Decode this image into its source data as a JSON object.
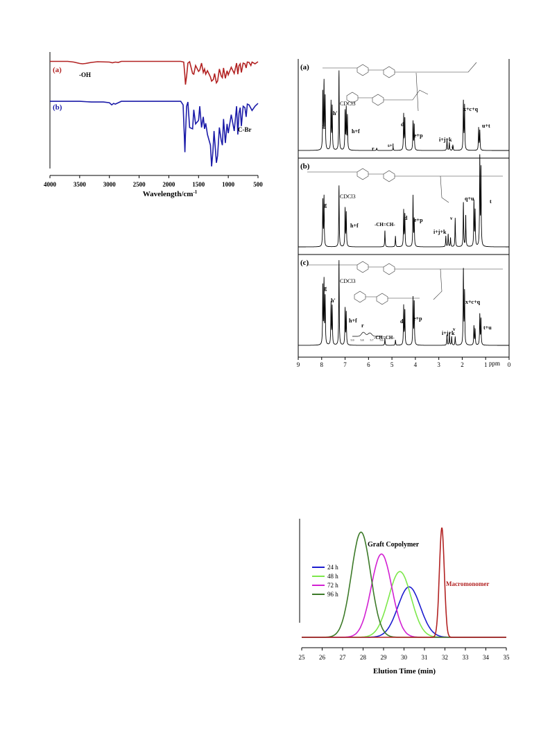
{
  "chart_data": [
    {
      "type": "line",
      "title": "",
      "xlabel": "Wavelength/cm",
      "xlabel_sup": "-1",
      "ylabel": "",
      "xlim": [
        4000,
        500
      ],
      "xticks": [
        "4000",
        "3500",
        "3000",
        "2500",
        "2000",
        "1500",
        "1000",
        "500"
      ],
      "grid": false,
      "series": [
        {
          "name": "(a)",
          "color": "#b22222",
          "x": [
            4000,
            3700,
            3600,
            3500,
            3450,
            3400,
            3300,
            3200,
            3000,
            2950,
            2900,
            2850,
            2800,
            2500,
            2200,
            2000,
            1800,
            1750,
            1730,
            1720,
            1700,
            1680,
            1650,
            1600,
            1580,
            1550,
            1500,
            1480,
            1450,
            1420,
            1400,
            1380,
            1350,
            1300,
            1280,
            1250,
            1230,
            1200,
            1180,
            1150,
            1120,
            1100,
            1080,
            1050,
            1020,
            1000,
            950,
            900,
            860,
            840,
            820,
            800,
            780,
            750,
            720,
            700,
            680,
            650,
            620,
            600,
            550,
            500
          ],
          "y": [
            97,
            97,
            95,
            91,
            90,
            91,
            94,
            96,
            95,
            93,
            95,
            94,
            97,
            97,
            97,
            97,
            97,
            95,
            55,
            30,
            55,
            92,
            96,
            62,
            60,
            85,
            68,
            72,
            92,
            65,
            75,
            60,
            70,
            52,
            40,
            45,
            62,
            35,
            40,
            75,
            55,
            50,
            78,
            48,
            70,
            58,
            80,
            62,
            92,
            60,
            85,
            90,
            65,
            92,
            90,
            78,
            95,
            94,
            85,
            95,
            90,
            96
          ]
        },
        {
          "name": "(b)",
          "color": "#1a1aa8",
          "x": [
            4000,
            3700,
            3500,
            3300,
            3100,
            3000,
            2960,
            2930,
            2900,
            2850,
            2800,
            2500,
            2200,
            2000,
            1800,
            1760,
            1740,
            1730,
            1720,
            1700,
            1680,
            1650,
            1600,
            1580,
            1550,
            1500,
            1480,
            1450,
            1420,
            1400,
            1380,
            1350,
            1300,
            1280,
            1260,
            1240,
            1200,
            1180,
            1150,
            1120,
            1100,
            1080,
            1050,
            1020,
            1000,
            950,
            900,
            860,
            840,
            820,
            800,
            780,
            750,
            720,
            700,
            680,
            650,
            600,
            550,
            500
          ],
          "y": [
            97,
            97,
            97,
            96,
            96,
            95,
            92,
            94,
            93,
            95,
            97,
            97,
            97,
            97,
            97,
            92,
            50,
            25,
            50,
            90,
            96,
            60,
            58,
            85,
            65,
            70,
            90,
            60,
            75,
            58,
            66,
            50,
            35,
            5,
            25,
            55,
            10,
            20,
            60,
            42,
            35,
            72,
            38,
            65,
            52,
            78,
            55,
            90,
            50,
            80,
            88,
            62,
            90,
            88,
            75,
            93,
            92,
            84,
            90,
            94
          ]
        }
      ],
      "annotations": [
        "-OH",
        "C-Br"
      ]
    },
    {
      "type": "line",
      "title": "",
      "xlabel": "ppm",
      "ylabel": "",
      "xlim": [
        9,
        0
      ],
      "xticks": [
        "9",
        "8",
        "7",
        "6",
        "5",
        "4",
        "3",
        "2",
        "1",
        "0"
      ],
      "grid": false,
      "panels": [
        {
          "label": "(a)",
          "annotations": [
            "g",
            "h'",
            "CDCl3",
            "h+f",
            "d",
            "e+p",
            "r",
            "s+l",
            "i+j+k",
            "v",
            "x+c+q",
            "u+t"
          ],
          "peaks": [
            {
              "ppm": 7.95,
              "height": 0.72
            },
            {
              "ppm": 7.9,
              "height": 0.82
            },
            {
              "ppm": 7.85,
              "height": 0.66
            },
            {
              "ppm": 7.6,
              "height": 0.6
            },
            {
              "ppm": 7.55,
              "height": 0.55
            },
            {
              "ppm": 7.26,
              "height": 1.0
            },
            {
              "ppm": 7.0,
              "height": 0.48
            },
            {
              "ppm": 6.95,
              "height": 0.52
            },
            {
              "ppm": 6.9,
              "height": 0.42
            },
            {
              "ppm": 5.65,
              "height": 0.03
            },
            {
              "ppm": 4.95,
              "height": 0.04
            },
            {
              "ppm": 4.5,
              "height": 0.45
            },
            {
              "ppm": 4.45,
              "height": 0.4
            },
            {
              "ppm": 4.1,
              "height": 0.36
            },
            {
              "ppm": 4.05,
              "height": 0.32
            },
            {
              "ppm": 2.65,
              "height": 0.14
            },
            {
              "ppm": 2.55,
              "height": 0.1
            },
            {
              "ppm": 2.4,
              "height": 0.07
            },
            {
              "ppm": 1.95,
              "height": 0.62
            },
            {
              "ppm": 1.9,
              "height": 0.55
            },
            {
              "ppm": 1.3,
              "height": 0.28
            },
            {
              "ppm": 1.25,
              "height": 0.25
            }
          ]
        },
        {
          "label": "(b)",
          "annotations": [
            "g",
            "CDCl3",
            "h+f",
            "-CH=CH-",
            "d",
            "e+p",
            "i+j+k",
            "v",
            "q+u",
            "t"
          ],
          "peaks": [
            {
              "ppm": 7.95,
              "height": 0.52
            },
            {
              "ppm": 7.9,
              "height": 0.55
            },
            {
              "ppm": 7.26,
              "height": 0.68
            },
            {
              "ppm": 7.0,
              "height": 0.42
            },
            {
              "ppm": 6.95,
              "height": 0.38
            },
            {
              "ppm": 5.3,
              "height": 0.18
            },
            {
              "ppm": 4.85,
              "height": 0.12
            },
            {
              "ppm": 4.5,
              "height": 0.4
            },
            {
              "ppm": 4.45,
              "height": 0.36
            },
            {
              "ppm": 4.1,
              "height": 0.56
            },
            {
              "ppm": 4.05,
              "height": 0.3
            },
            {
              "ppm": 2.7,
              "height": 0.12
            },
            {
              "ppm": 2.6,
              "height": 0.14
            },
            {
              "ppm": 2.5,
              "height": 0.1
            },
            {
              "ppm": 2.3,
              "height": 0.32
            },
            {
              "ppm": 1.95,
              "height": 0.5
            },
            {
              "ppm": 1.85,
              "height": 0.35
            },
            {
              "ppm": 1.5,
              "height": 0.5
            },
            {
              "ppm": 1.45,
              "height": 0.4
            },
            {
              "ppm": 1.25,
              "height": 1.0
            },
            {
              "ppm": 1.2,
              "height": 0.85
            }
          ]
        },
        {
          "label": "(c)",
          "annotations": [
            "g",
            "h'",
            "CDCl3",
            "h+f",
            "r",
            "-CH=CH-",
            "d",
            "e+p",
            "i+j+k",
            "v",
            "x+c+q",
            "t+u"
          ],
          "inset_xticks": [
            "5.9",
            "5.8",
            "5.7",
            "5.6"
          ],
          "peaks": [
            {
              "ppm": 7.95,
              "height": 0.68
            },
            {
              "ppm": 7.9,
              "height": 0.72
            },
            {
              "ppm": 7.85,
              "height": 0.55
            },
            {
              "ppm": 7.6,
              "height": 0.48
            },
            {
              "ppm": 7.55,
              "height": 0.45
            },
            {
              "ppm": 7.26,
              "height": 0.98
            },
            {
              "ppm": 7.0,
              "height": 0.42
            },
            {
              "ppm": 6.95,
              "height": 0.38
            },
            {
              "ppm": 5.3,
              "height": 0.08
            },
            {
              "ppm": 4.85,
              "height": 0.06
            },
            {
              "ppm": 4.5,
              "height": 0.45
            },
            {
              "ppm": 4.45,
              "height": 0.4
            },
            {
              "ppm": 4.1,
              "height": 0.54
            },
            {
              "ppm": 4.05,
              "height": 0.5
            },
            {
              "ppm": 2.65,
              "height": 0.12
            },
            {
              "ppm": 2.55,
              "height": 0.14
            },
            {
              "ppm": 2.45,
              "height": 0.1
            },
            {
              "ppm": 2.3,
              "height": 0.1
            },
            {
              "ppm": 1.95,
              "height": 0.88
            },
            {
              "ppm": 1.9,
              "height": 0.6
            },
            {
              "ppm": 1.5,
              "height": 0.22
            },
            {
              "ppm": 1.45,
              "height": 0.18
            },
            {
              "ppm": 1.25,
              "height": 0.36
            },
            {
              "ppm": 1.2,
              "height": 0.3
            }
          ]
        }
      ]
    },
    {
      "type": "line",
      "title": "",
      "xlabel": "Elution Time (min)",
      "ylabel": "",
      "xlim": [
        25,
        35
      ],
      "xticks": [
        "25",
        "26",
        "27",
        "28",
        "29",
        "30",
        "31",
        "32",
        "33",
        "34",
        "35"
      ],
      "legend_position": "left",
      "grid": false,
      "annotations": [
        "Graft Copolymer",
        "Macromonomer"
      ],
      "series": [
        {
          "name": "24 h",
          "color": "#1c1ccf",
          "peak": 30.25,
          "sigma": 0.55,
          "height": 0.46
        },
        {
          "name": "48 h",
          "color": "#7ce84a",
          "peak": 29.8,
          "sigma": 0.55,
          "height": 0.6
        },
        {
          "name": "72 h",
          "color": "#d21fd2",
          "peak": 28.9,
          "sigma": 0.5,
          "height": 0.76
        },
        {
          "name": "96 h",
          "color": "#3c7a28",
          "peak": 27.9,
          "sigma": 0.47,
          "height": 0.96
        },
        {
          "color": "#b22222",
          "peak": 31.85,
          "sigma": 0.12,
          "height": 1.0
        }
      ]
    }
  ]
}
